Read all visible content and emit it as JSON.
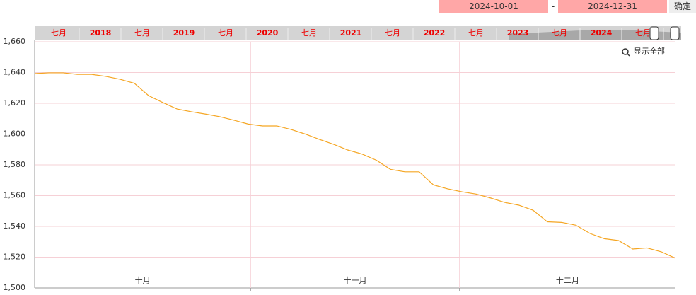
{
  "chart_data": {
    "type": "line",
    "range_start": "2024-10-01",
    "range_separator": "-",
    "range_end": "2024-12-31",
    "confirm": "确定",
    "show_all": "显示全部",
    "navigator_labels": [
      "七月",
      "2018",
      "七月",
      "2019",
      "七月",
      "2020",
      "七月",
      "2021",
      "七月",
      "2022",
      "七月",
      "2023",
      "七月",
      "2024",
      "七月"
    ],
    "months": [
      "十月",
      "十一月",
      "十二月"
    ],
    "color": "#f5a623",
    "values": [
      1639.3,
      1639.8,
      1639.8,
      1638.8,
      1638.8,
      1637.5,
      1635.6,
      1633.0,
      1625.0,
      1620.5,
      1616.3,
      1614.5,
      1613.0,
      1611.3,
      1609.0,
      1606.5,
      1605.3,
      1605.3,
      1603.0,
      1600.0,
      1596.5,
      1593.3,
      1589.6,
      1587.0,
      1583.0,
      1577.0,
      1575.5,
      1575.5,
      1567.0,
      1564.4,
      1562.5,
      1561.0,
      1558.5,
      1555.6,
      1553.8,
      1550.5,
      1543.0,
      1542.6,
      1540.8,
      1535.4,
      1532.0,
      1530.8,
      1525.3,
      1526.0,
      1523.5,
      1519.3
    ],
    "ylim": [
      1500,
      1660
    ],
    "yticks": [
      {
        "value": 1500,
        "label": "1,500"
      },
      {
        "value": 1520,
        "label": "1,520"
      },
      {
        "value": 1540,
        "label": "1,540"
      },
      {
        "value": 1560,
        "label": "1,560"
      },
      {
        "value": 1580,
        "label": "1,580"
      },
      {
        "value": 1600,
        "label": "1,600"
      },
      {
        "value": 1620,
        "label": "1,620"
      },
      {
        "value": 1640,
        "label": "1,640"
      },
      {
        "value": 1660,
        "label": "1,660"
      }
    ],
    "grid": true
  }
}
